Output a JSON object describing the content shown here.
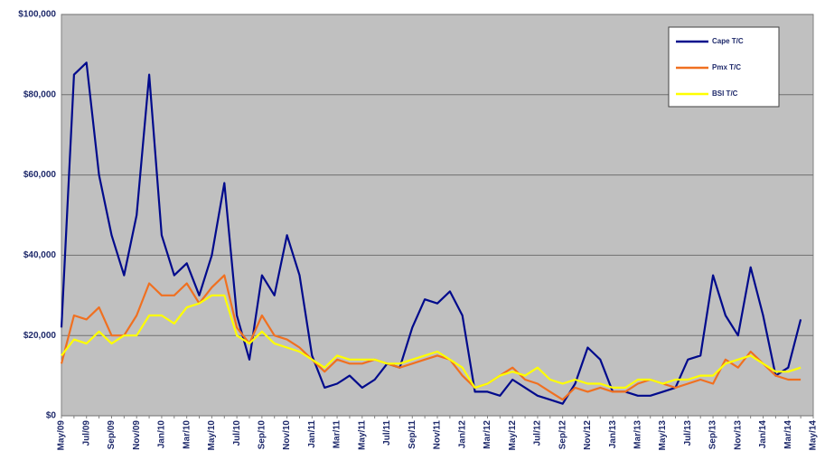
{
  "chart_data": {
    "type": "line",
    "categories": [
      "May/09",
      null,
      "Jul/09",
      null,
      "Sep/09",
      null,
      "Nov/09",
      null,
      "Jan/10",
      null,
      "Mar/10",
      null,
      "May/10",
      null,
      "Jul/10",
      null,
      "Sep/10",
      null,
      "Nov/10",
      null,
      "Jan/11",
      null,
      "Mar/11",
      null,
      "May/11",
      null,
      "Jul/11",
      null,
      "Sep/11",
      null,
      "Nov/11",
      null,
      "Jan/12",
      null,
      "Mar/12",
      null,
      "May/12",
      null,
      "Jul/12",
      null,
      "Sep/12",
      null,
      "Nov/12",
      null,
      "Jan/13",
      null,
      "Mar/13",
      null,
      "May/13",
      null,
      "Jul/13",
      null,
      "Sep/13",
      null,
      "Nov/13",
      null,
      "Jan/14",
      null,
      "Mar/14",
      null,
      "May/14"
    ],
    "series": [
      {
        "name": "Cape T/C",
        "color": "#000a8c",
        "values": [
          22000,
          85000,
          88000,
          60000,
          45000,
          35000,
          50000,
          85000,
          45000,
          35000,
          38000,
          30000,
          40000,
          58000,
          25000,
          14000,
          35000,
          30000,
          45000,
          35000,
          15000,
          7000,
          8000,
          10000,
          7000,
          9000,
          13000,
          12000,
          22000,
          29000,
          28000,
          31000,
          25000,
          6000,
          6000,
          5000,
          9000,
          7000,
          5000,
          4000,
          3000,
          8000,
          17000,
          14000,
          6000,
          6000,
          5000,
          5000,
          6000,
          7000,
          14000,
          15000,
          35000,
          25000,
          20000,
          37000,
          25000,
          10000,
          12000,
          24000,
          null
        ]
      },
      {
        "name": "Pmx T/C",
        "color": "#f07020",
        "values": [
          13000,
          25000,
          24000,
          27000,
          20000,
          20000,
          25000,
          33000,
          30000,
          30000,
          33000,
          28000,
          32000,
          35000,
          22000,
          18000,
          25000,
          20000,
          19000,
          17000,
          14000,
          11000,
          14000,
          13000,
          13000,
          14000,
          13000,
          12000,
          13000,
          14000,
          15000,
          14000,
          10000,
          7000,
          8000,
          10000,
          12000,
          9000,
          8000,
          6000,
          4000,
          7000,
          6000,
          7000,
          6000,
          6000,
          8000,
          9000,
          8000,
          7000,
          8000,
          9000,
          8000,
          14000,
          12000,
          16000,
          13000,
          10000,
          9000,
          9000,
          null
        ]
      },
      {
        "name": "BSI T/C",
        "color": "#ffff00",
        "values": [
          15000,
          19000,
          18000,
          21000,
          18000,
          20000,
          20000,
          25000,
          25000,
          23000,
          27000,
          28000,
          30000,
          30000,
          20000,
          18000,
          21000,
          18000,
          17000,
          16000,
          14000,
          12000,
          15000,
          14000,
          14000,
          14000,
          13000,
          13000,
          14000,
          15000,
          16000,
          14000,
          12000,
          7000,
          8000,
          10000,
          11000,
          10000,
          12000,
          9000,
          8000,
          9000,
          8000,
          8000,
          7000,
          7000,
          9000,
          9000,
          8000,
          9000,
          9000,
          10000,
          10000,
          13000,
          14000,
          15000,
          13000,
          11000,
          11000,
          12000,
          null
        ]
      }
    ],
    "ylim": [
      0,
      100000
    ],
    "yticks": [
      {
        "value": 0,
        "label": "$0"
      },
      {
        "value": 20000,
        "label": "$20,000"
      },
      {
        "value": 40000,
        "label": "$40,000"
      },
      {
        "value": 60000,
        "label": "$60,000"
      },
      {
        "value": 80000,
        "label": "$80,000"
      },
      {
        "value": 100000,
        "label": "$100,000"
      }
    ],
    "grid": true,
    "legend": "upper right"
  }
}
